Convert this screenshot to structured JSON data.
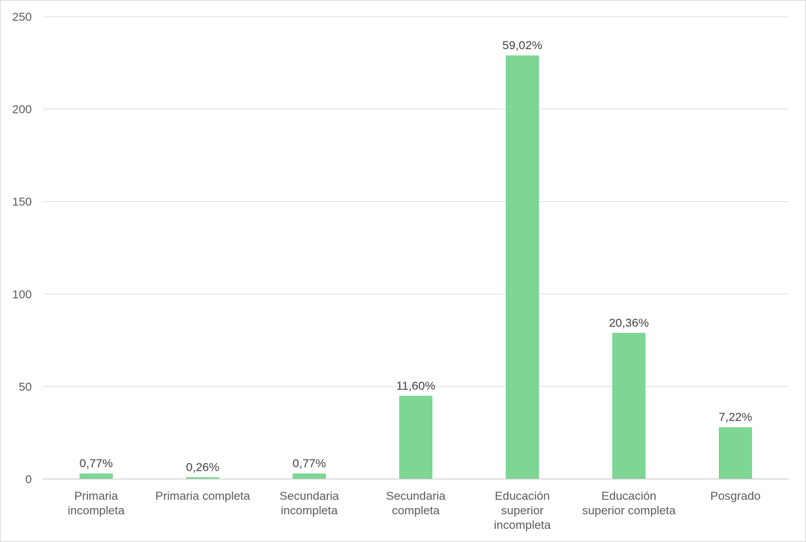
{
  "chart_data": {
    "type": "bar",
    "title": "",
    "xlabel": "",
    "ylabel": "",
    "ylim": [
      0,
      250
    ],
    "yticks": [
      0,
      50,
      100,
      150,
      200,
      250
    ],
    "grid": true,
    "legend": "none",
    "bar_color": "#7DD694",
    "categories": [
      [
        "Primaria",
        "incompleta"
      ],
      [
        "Primaria completa"
      ],
      [
        "Secundaria",
        "incompleta"
      ],
      [
        "Secundaria",
        "completa"
      ],
      [
        "Educación",
        "superior",
        "incompleta"
      ],
      [
        "Educación",
        "superior completa"
      ],
      [
        "Posgrado"
      ]
    ],
    "values": [
      3,
      1,
      3,
      45,
      229,
      79,
      28
    ],
    "data_labels": [
      "0,77%",
      "0,26%",
      "0,77%",
      "11,60%",
      "59,02%",
      "20,36%",
      "7,22%"
    ]
  }
}
